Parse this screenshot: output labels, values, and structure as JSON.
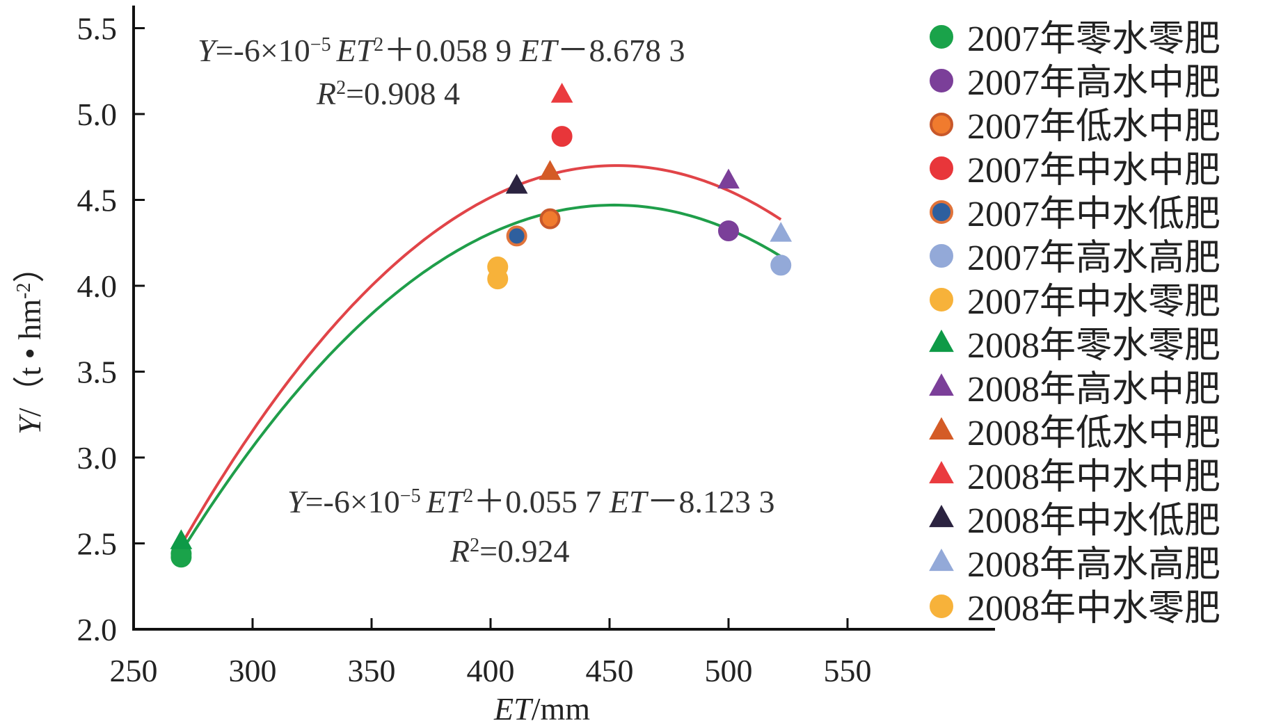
{
  "chart_data": {
    "type": "scatter",
    "xlabel": "ET/mm",
    "ylabel": "Y/（t·hm-2）",
    "xlim": [
      250,
      560
    ],
    "ylim": [
      2.0,
      5.65
    ],
    "x_ticks": [
      "250",
      "300",
      "350",
      "400",
      "450",
      "500",
      "550"
    ],
    "y_ticks": [
      "2.0",
      "2.5",
      "3.0",
      "3.5",
      "4.0",
      "4.5",
      "5.0",
      "5.5"
    ],
    "series": [
      {
        "name": "2007年零水零肥",
        "marker": "circle",
        "color": "#1aa34a",
        "edge": "#1aa34a",
        "points": [
          [
            270,
            2.42
          ],
          [
            270,
            2.44
          ]
        ]
      },
      {
        "name": "2007年高水中肥",
        "marker": "circle",
        "color": "#7b3f99",
        "edge": "#7b3f99",
        "points": [
          [
            500,
            4.32
          ]
        ]
      },
      {
        "name": "2007年低水中肥",
        "marker": "circle",
        "color": "#f07b2e",
        "edge": "#c8582a",
        "points": [
          [
            425,
            4.39
          ]
        ]
      },
      {
        "name": "2007年中水中肥",
        "marker": "circle",
        "color": "#e8363a",
        "edge": "#e8363a",
        "points": [
          [
            430,
            4.87
          ]
        ]
      },
      {
        "name": "2007年中水低肥",
        "marker": "circle",
        "color": "#2e5f9e",
        "edge": "#e0733a",
        "points": [
          [
            411,
            4.29
          ]
        ]
      },
      {
        "name": "2007年高水高肥",
        "marker": "circle",
        "color": "#93a9d8",
        "edge": "#93a9d8",
        "points": [
          [
            522,
            4.12
          ]
        ]
      },
      {
        "name": "2007年中水零肥",
        "marker": "circle",
        "color": "#f7b23a",
        "edge": "#f7b23a",
        "points": [
          [
            403,
            4.04
          ],
          [
            403,
            4.11
          ]
        ]
      },
      {
        "name": "2008年零水零肥",
        "marker": "triangle",
        "color": "#0e9a47",
        "edge": "#0e9a47",
        "points": [
          [
            270,
            2.51
          ]
        ]
      },
      {
        "name": "2008年高水中肥",
        "marker": "triangle",
        "color": "#7b3f99",
        "edge": "#7b3f99",
        "points": [
          [
            500,
            4.61
          ]
        ]
      },
      {
        "name": "2008年低水中肥",
        "marker": "triangle",
        "color": "#d45b26",
        "edge": "#d45b26",
        "points": [
          [
            425,
            4.66
          ]
        ]
      },
      {
        "name": "2008年中水中肥",
        "marker": "triangle",
        "color": "#ea3b3f",
        "edge": "#ea3b3f",
        "points": [
          [
            430,
            5.11
          ]
        ]
      },
      {
        "name": "2008年中水低肥",
        "marker": "triangle",
        "color": "#2b2340",
        "edge": "#2b2340",
        "points": [
          [
            411,
            4.58
          ]
        ]
      },
      {
        "name": "2008年高水高肥",
        "marker": "triangle",
        "color": "#93a9d8",
        "edge": "#93a9d8",
        "points": [
          [
            522,
            4.3
          ]
        ]
      },
      {
        "name": "2008年中水零肥",
        "marker": "circle",
        "color": "#f7b23a",
        "edge": "#f7b23a",
        "points": []
      }
    ],
    "fits": [
      {
        "name": "2008 fit",
        "color": "#e14448",
        "a": -6e-05,
        "b": 0.0589,
        "c": -8.6783,
        "x_range": [
          270,
          522
        ],
        "render": {
          "amplitude": 2.21,
          "vertex_x": 453,
          "vertex_y": 4.7
        }
      },
      {
        "name": "2007 fit",
        "color": "#1f9e4a",
        "a": -6e-05,
        "b": 0.0557,
        "c": -8.1233,
        "x_range": [
          270,
          522
        ],
        "render": {
          "amplitude": 2.02,
          "vertex_x": 452,
          "vertex_y": 4.47
        }
      }
    ],
    "annotations": {
      "eq1": {
        "Y": "Y",
        "pre": "=-6×10",
        "exp": "−5",
        "ET": "ET",
        "sq": "2",
        "mid": "＋0.058 9 ",
        "ET2": "ET",
        "post": "－8.678 3"
      },
      "r1": {
        "R": "R",
        "sq": "2",
        "val": "=0.908 4"
      },
      "eq2": {
        "Y": "Y",
        "pre": "=-6×10",
        "exp": "−5",
        "ET": "ET",
        "sq": "2",
        "mid": "＋0.055 7 ",
        "ET2": "ET",
        "post": "－8.123 3"
      },
      "r2": {
        "R": "R",
        "sq": "2",
        "val": "=0.924"
      }
    },
    "axis_title_parts": {
      "x_it": "ET",
      "x_rest": "/mm",
      "y_it": "Y",
      "y_rest": "/（t • hm",
      "y_sup": "-2",
      "y_close": "）"
    }
  }
}
